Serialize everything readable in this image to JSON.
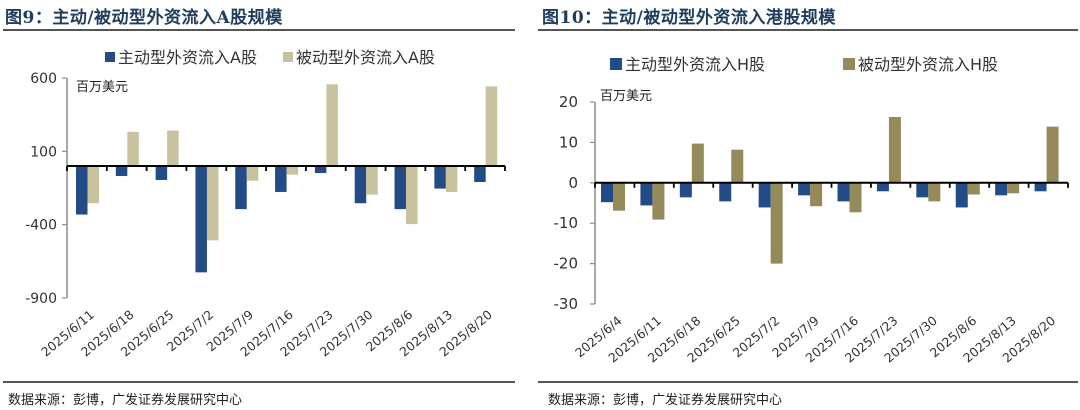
{
  "panels": [
    {
      "figure_title": "图9：主动/被动型外资流入A股规模",
      "source": "数据来源：彭博，广发证券发展研究中心"
    },
    {
      "figure_title": "图10：主动/被动型外资流入港股规模",
      "source": "数据来源：彭博，广发证券发展研究中心"
    }
  ],
  "chart_data": [
    {
      "type": "bar",
      "title": "主动/被动型外资流入A股规模",
      "unit_label": "百万美元",
      "xlabel": "",
      "ylabel": "百万美元",
      "ylim": [
        -900,
        600
      ],
      "yticks": [
        600,
        100,
        -400,
        -900
      ],
      "ytick_labels": [
        "600",
        "100",
        "-400",
        "-900"
      ],
      "grid": false,
      "legend_position": "top",
      "categories": [
        "2025/6/11",
        "2025/6/18",
        "2025/6/25",
        "2025/7/2",
        "2025/7/9",
        "2025/7/16",
        "2025/7/23",
        "2025/7/30",
        "2025/8/6",
        "2025/8/13",
        "2025/8/20"
      ],
      "series": [
        {
          "name": "主动型外资流入A股",
          "color": "#234b86",
          "values": [
            -331,
            -68,
            -95,
            -725,
            -294,
            -177,
            -48,
            -254,
            -294,
            -154,
            -109
          ]
        },
        {
          "name": "被动型外资流入A股",
          "color": "#c8c29e",
          "values": [
            -254,
            233,
            242,
            -507,
            -100,
            -59,
            557,
            -195,
            -396,
            -177,
            543
          ]
        }
      ]
    },
    {
      "type": "bar",
      "title": "主动/被动型外资流入港股规模",
      "unit_label": "百万美元",
      "xlabel": "",
      "ylabel": "百万美元",
      "ylim": [
        -30,
        20
      ],
      "yticks": [
        20,
        10,
        0,
        -10,
        -20,
        -30
      ],
      "ytick_labels": [
        "20",
        "10",
        "0",
        "-10",
        "-20",
        "-30"
      ],
      "grid": false,
      "legend_position": "top",
      "categories": [
        "2025/6/4",
        "2025/6/11",
        "2025/6/18",
        "2025/6/25",
        "2025/7/2",
        "2025/7/9",
        "2025/7/16",
        "2025/7/23",
        "2025/7/30",
        "2025/8/6",
        "2025/8/13",
        "2025/8/20"
      ],
      "series": [
        {
          "name": "主动型外资流入H股",
          "color": "#234b86",
          "values": [
            -4.8,
            -5.6,
            -3.6,
            -4.6,
            -6.1,
            -3.1,
            -4.6,
            -2.1,
            -3.6,
            -6.1,
            -3.1,
            -2.1
          ]
        },
        {
          "name": "被动型外资流入H股",
          "color": "#948a5a",
          "values": [
            -6.9,
            -9.1,
            9.7,
            8.2,
            -20.0,
            -5.8,
            -7.3,
            16.3,
            -4.6,
            -2.9,
            -2.6,
            13.9
          ]
        }
      ]
    }
  ]
}
